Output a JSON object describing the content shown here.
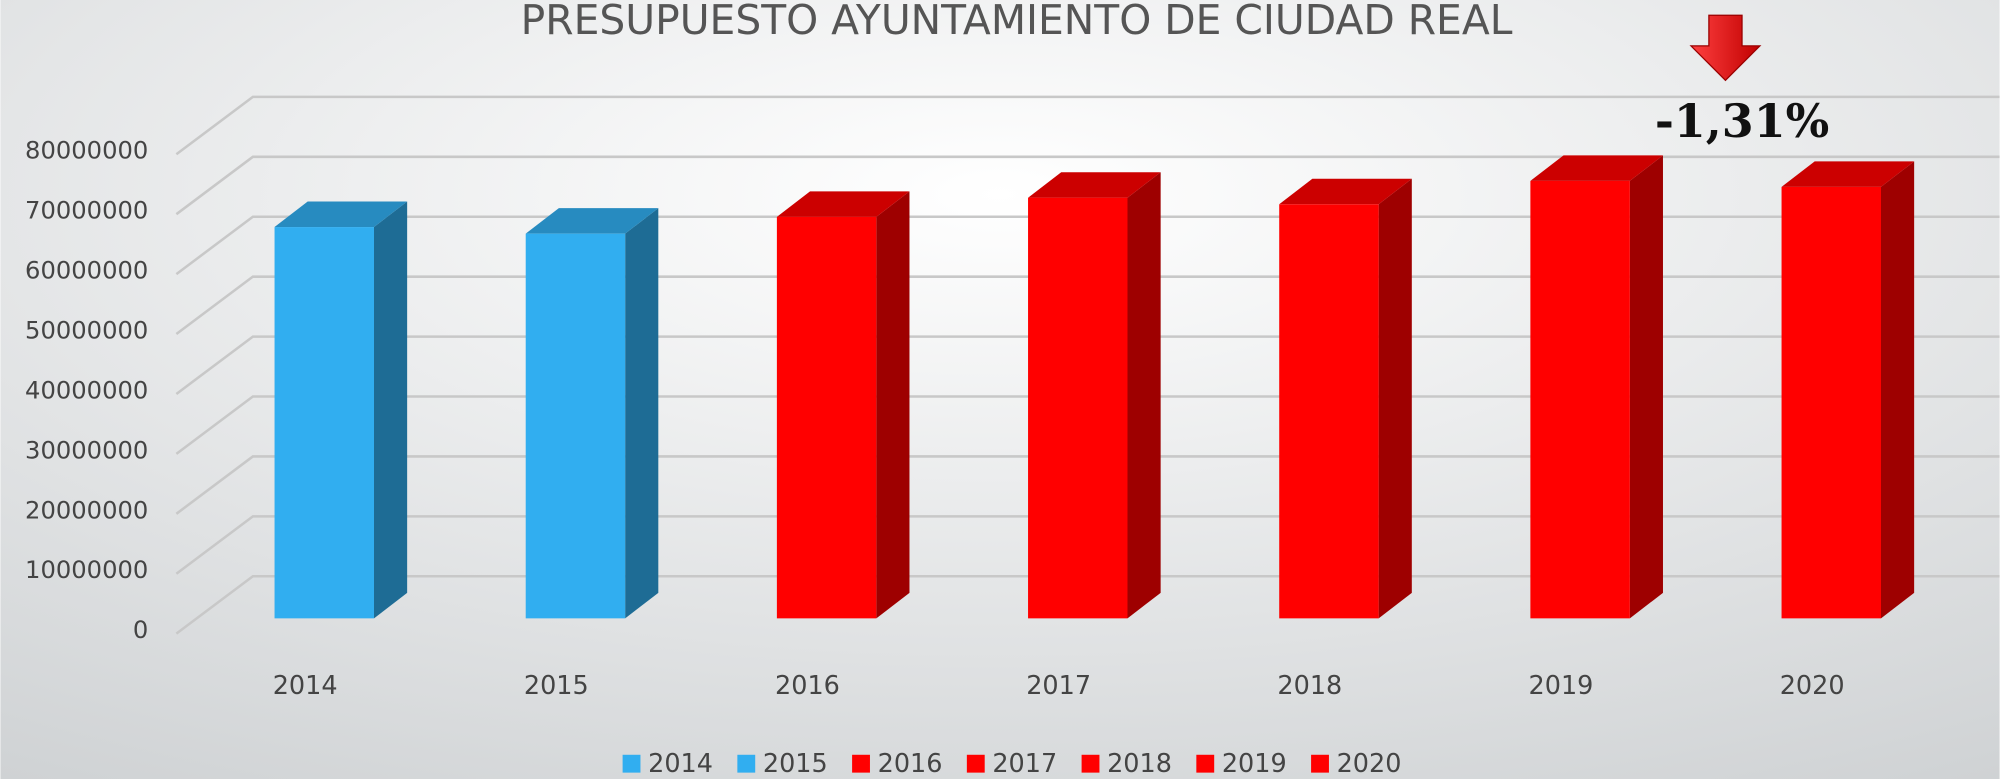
{
  "chart_data": {
    "type": "bar3d",
    "title": "PRESUPUESTO AYUNTAMIENTO DE CIUDAD REAL",
    "annotation": "-1,31%",
    "categories": [
      "2014",
      "2015",
      "2016",
      "2017",
      "2018",
      "2019",
      "2020"
    ],
    "values": [
      65300000,
      64200000,
      67000000,
      70200000,
      69100000,
      73000000,
      72000000
    ],
    "colors": [
      "#31aef0",
      "#31aef0",
      "#ff0000",
      "#ff0000",
      "#ff0000",
      "#ff0000",
      "#ff0000"
    ],
    "ylim": [
      0,
      80000000
    ],
    "yticks": [
      0,
      10000000,
      20000000,
      30000000,
      40000000,
      50000000,
      60000000,
      70000000,
      80000000
    ],
    "grid": true,
    "legend": "bottom"
  }
}
